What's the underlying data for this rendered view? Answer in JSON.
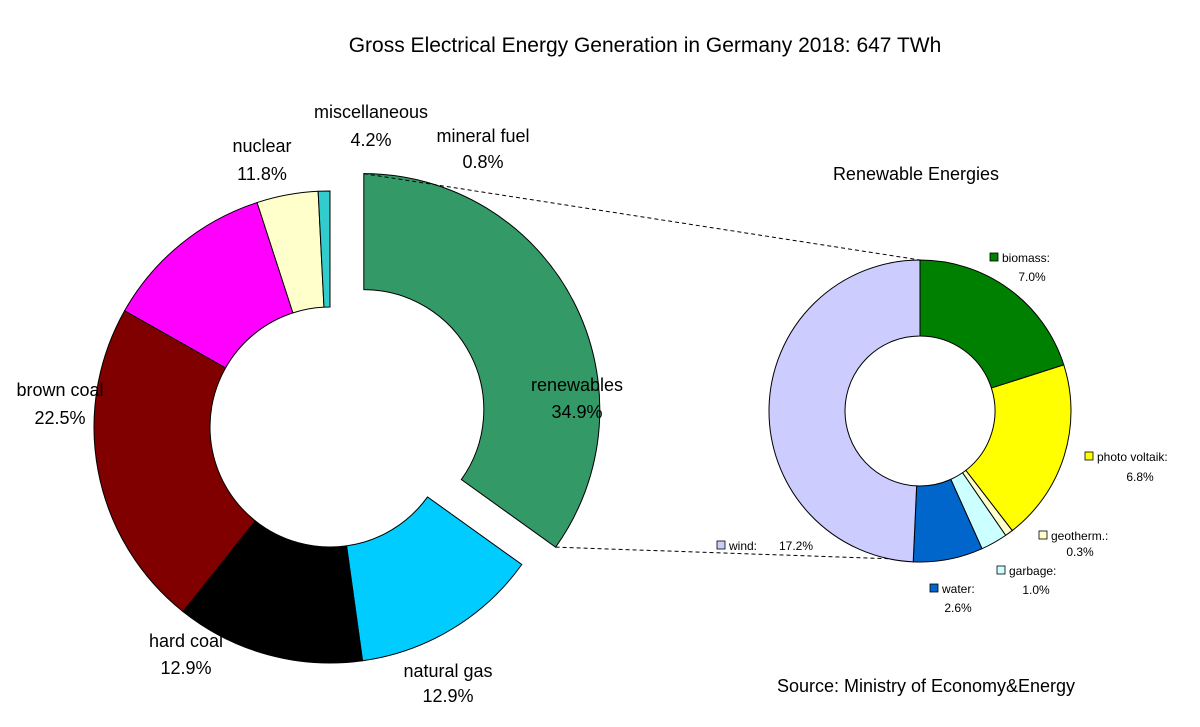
{
  "chart_data": [
    {
      "type": "pie",
      "variant": "donut",
      "title": "Gross Electrical Energy Generation in Germany 2018: 647 TWh",
      "unit": "%",
      "slices": [
        {
          "label": "renewables",
          "value_text": "34.9%",
          "value": 34.9,
          "color": "#339966",
          "exploded": true
        },
        {
          "label": "natural gas",
          "value_text": "12.9%",
          "value": 12.9,
          "color": "#00ccff"
        },
        {
          "label": "hard coal",
          "value_text": "12.9%",
          "value": 12.9,
          "color": "#000000"
        },
        {
          "label": "brown coal",
          "value_text": "22.5%",
          "value": 22.5,
          "color": "#800000"
        },
        {
          "label": "nuclear",
          "value_text": "11.8%",
          "value": 11.8,
          "color": "#ff00ff"
        },
        {
          "label": "miscellaneous",
          "value_text": "4.2%",
          "value": 4.2,
          "color": "#ffffcc"
        },
        {
          "label": "mineral fuel",
          "value_text": "0.8%",
          "value": 0.8,
          "color": "#33cccc"
        }
      ]
    },
    {
      "type": "pie",
      "variant": "donut",
      "title": "Renewable Energies",
      "unit": "%",
      "slices": [
        {
          "label": "biomass:",
          "value_text": "7.0%",
          "value": 7.0,
          "color": "#008000"
        },
        {
          "label": "photo voltaik:",
          "value_text": "6.8%",
          "value": 6.8,
          "color": "#ffff00"
        },
        {
          "label": "geotherm.:",
          "value_text": "0.3%",
          "value": 0.3,
          "color": "#ffffcc"
        },
        {
          "label": "garbage:",
          "value_text": "1.0%",
          "value": 1.0,
          "color": "#ccffff"
        },
        {
          "label": "water:",
          "value_text": "2.6%",
          "value": 2.6,
          "color": "#0066cc"
        },
        {
          "label": "wind:",
          "value_text": "17.2%",
          "value": 17.2,
          "color": "#ccccff"
        }
      ]
    }
  ],
  "source": "Source: Ministry of Economy&Energy"
}
